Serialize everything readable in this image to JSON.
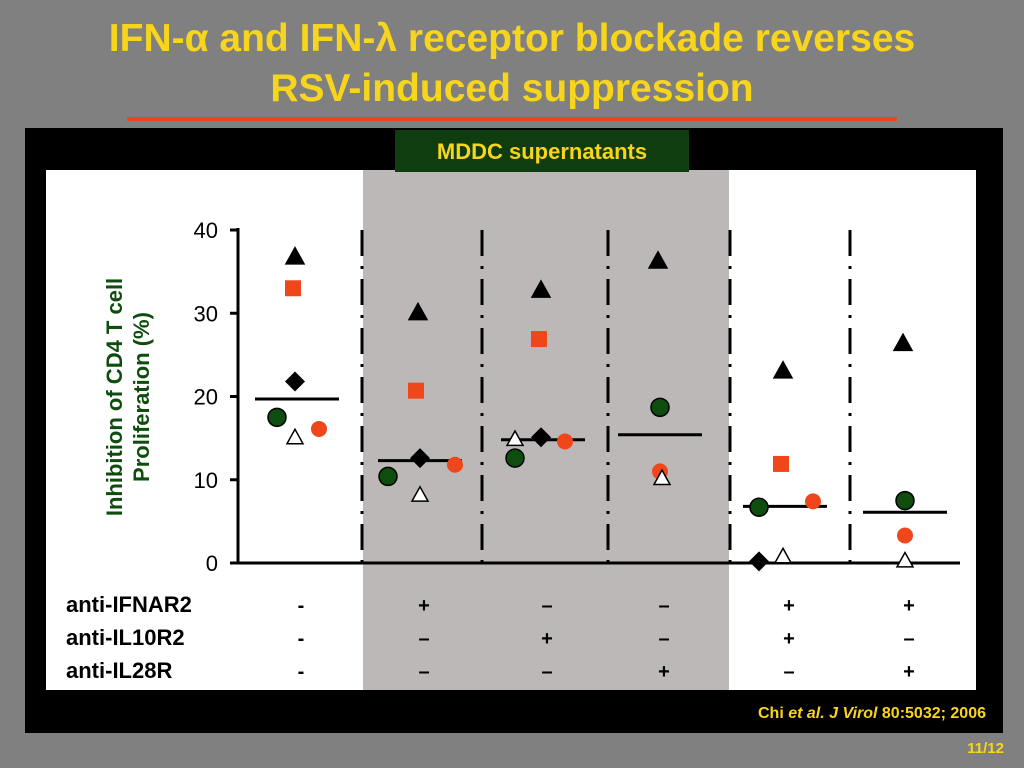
{
  "slide": {
    "title_line1": "IFN-α and IFN-λ receptor blockade reverses",
    "title_line2": "RSV-induced suppression",
    "panel_label": "MDDC supernatants",
    "citation_author": "Chi",
    "citation_etal": "et al.",
    "citation_journal": "J Virol",
    "citation_ref": "80:5032; 2006",
    "page": "11/12"
  },
  "colors": {
    "title": "#f7d51d",
    "red": "#f0461c",
    "green": "#0f4d0f",
    "black": "#000000",
    "shade": "#bdb8b8"
  },
  "chart_data": {
    "type": "scatter",
    "ylabel_line1": "Inhibition of CD4 T cell",
    "ylabel_line2": "Proliferation (%)",
    "ylim": [
      0,
      40
    ],
    "yticks": [
      "0",
      "10",
      "20",
      "30",
      "40"
    ],
    "treatment_rows": [
      {
        "label": "anti-IFNAR2",
        "values": [
          "-",
          "+",
          "–",
          "–",
          "+",
          "+"
        ]
      },
      {
        "label": "anti-IL10R2",
        "values": [
          "-",
          "–",
          "+",
          "–",
          "+",
          "–"
        ]
      },
      {
        "label": "anti-IL28R",
        "values": [
          "-",
          "–",
          "–",
          "+",
          "–",
          "+"
        ]
      }
    ],
    "groups": [
      {
        "mean": 19.7,
        "filled_triangle": 36.8,
        "red_square": 33,
        "filled_diamond": 21.8,
        "green_circle": 17.5,
        "red_circle": 16.1,
        "open_triangle": 15.1
      },
      {
        "mean": 12.3,
        "filled_triangle": 30.1,
        "red_square": 20.7,
        "filled_diamond": 12.6,
        "green_circle": 10.4,
        "red_circle": 11.8,
        "open_triangle": 8.2
      },
      {
        "mean": 14.8,
        "filled_triangle": 32.8,
        "red_square": 26.9,
        "filled_diamond": 15.1,
        "green_circle": 12.6,
        "red_circle": 14.6,
        "open_triangle": 14.9
      },
      {
        "mean": 15.4,
        "filled_triangle": 36.3,
        "red_square": null,
        "filled_diamond": null,
        "green_circle": 18.7,
        "red_circle": 11,
        "open_triangle": 10.2
      },
      {
        "mean": 6.8,
        "filled_triangle": 23.1,
        "red_square": 11.9,
        "filled_diamond": 0.2,
        "green_circle": 6.7,
        "red_circle": 7.4,
        "open_triangle": 0.8
      },
      {
        "mean": 6.1,
        "filled_triangle": 26.4,
        "red_square": null,
        "filled_diamond": null,
        "green_circle": 7.5,
        "red_circle": 3.3,
        "open_triangle": 0.3
      }
    ]
  }
}
